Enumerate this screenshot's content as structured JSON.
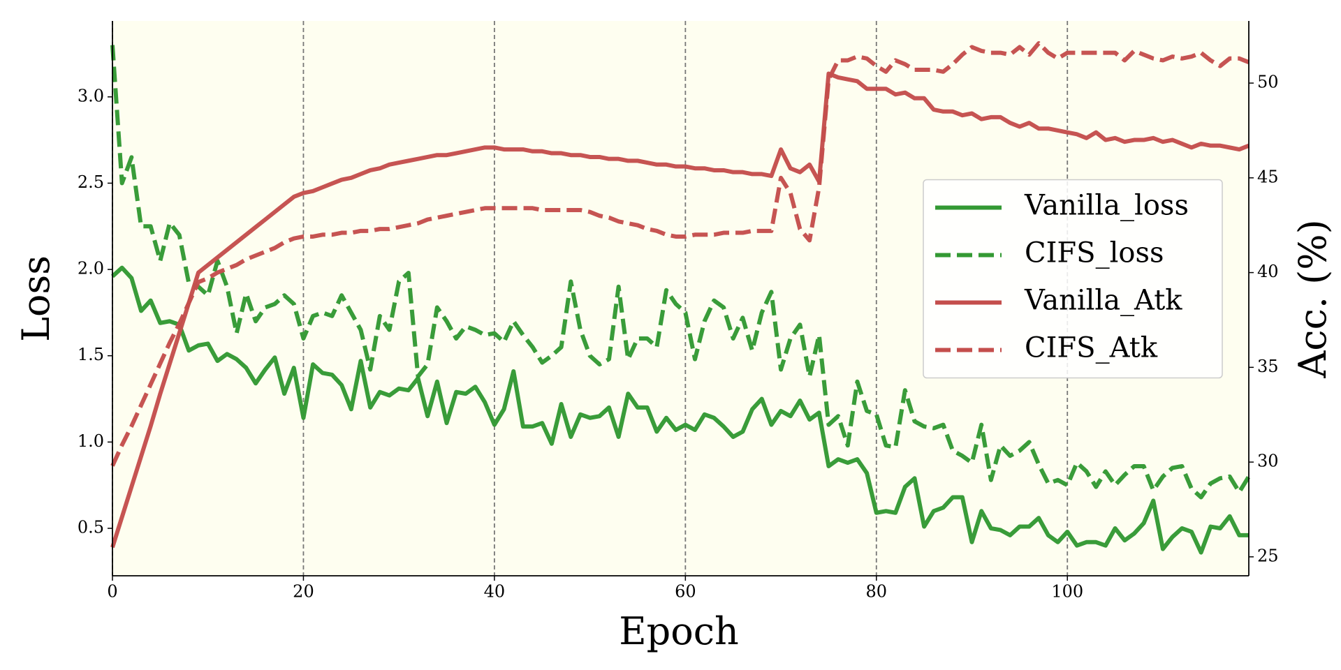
{
  "chart_data": {
    "type": "line",
    "xlabel": "Epoch",
    "ylabel": "Loss",
    "y2label": "Acc. (%)",
    "x": [
      0,
      1,
      2,
      3,
      4,
      5,
      6,
      7,
      8,
      9,
      10,
      11,
      12,
      13,
      14,
      15,
      16,
      17,
      18,
      19,
      20,
      21,
      22,
      23,
      24,
      25,
      26,
      27,
      28,
      29,
      30,
      31,
      32,
      33,
      34,
      35,
      36,
      37,
      38,
      39,
      40,
      41,
      42,
      43,
      44,
      45,
      46,
      47,
      48,
      49,
      50,
      51,
      52,
      53,
      54,
      55,
      56,
      57,
      58,
      59,
      60,
      61,
      62,
      63,
      64,
      65,
      66,
      67,
      68,
      69,
      70,
      71,
      72,
      73,
      74,
      75,
      76,
      77,
      78,
      79,
      80,
      81,
      82,
      83,
      84,
      85,
      86,
      87,
      88,
      89,
      90,
      91,
      92,
      93,
      94,
      95,
      96,
      97,
      98,
      99,
      100,
      101,
      102,
      103,
      104,
      105,
      106,
      107,
      108,
      109,
      110,
      111,
      112,
      113,
      114,
      115,
      116,
      117,
      118,
      119
    ],
    "series": [
      {
        "name": "Vanilla_loss",
        "color": "#339933",
        "linestyle": "solid",
        "axis": "y",
        "values": [
          1.96,
          2.01,
          1.95,
          1.76,
          1.82,
          1.69,
          1.7,
          1.68,
          1.53,
          1.56,
          1.57,
          1.47,
          1.51,
          1.48,
          1.43,
          1.34,
          1.42,
          1.49,
          1.28,
          1.43,
          1.14,
          1.45,
          1.4,
          1.39,
          1.33,
          1.19,
          1.47,
          1.2,
          1.29,
          1.27,
          1.31,
          1.3,
          1.37,
          1.15,
          1.35,
          1.11,
          1.29,
          1.28,
          1.32,
          1.23,
          1.1,
          1.19,
          1.41,
          1.09,
          1.09,
          1.11,
          0.99,
          1.22,
          1.03,
          1.16,
          1.14,
          1.15,
          1.2,
          1.03,
          1.28,
          1.2,
          1.2,
          1.06,
          1.14,
          1.07,
          1.1,
          1.07,
          1.16,
          1.14,
          1.09,
          1.03,
          1.06,
          1.19,
          1.25,
          1.1,
          1.18,
          1.15,
          1.24,
          1.13,
          1.17,
          0.86,
          0.9,
          0.88,
          0.9,
          0.82,
          0.59,
          0.6,
          0.59,
          0.74,
          0.79,
          0.51,
          0.6,
          0.62,
          0.68,
          0.68,
          0.42,
          0.6,
          0.5,
          0.49,
          0.46,
          0.51,
          0.51,
          0.56,
          0.46,
          0.42,
          0.48,
          0.4,
          0.42,
          0.42,
          0.4,
          0.5,
          0.43,
          0.47,
          0.53,
          0.66,
          0.38,
          0.45,
          0.5,
          0.48,
          0.36,
          0.51,
          0.5,
          0.57,
          0.46,
          0.46
        ]
      },
      {
        "name": "CIFS_loss",
        "color": "#339933",
        "linestyle": "dashed",
        "axis": "y",
        "values": [
          3.3,
          2.5,
          2.65,
          2.25,
          2.25,
          2.05,
          2.27,
          2.2,
          1.92,
          1.9,
          1.85,
          2.05,
          1.9,
          1.63,
          1.86,
          1.7,
          1.78,
          1.8,
          1.85,
          1.8,
          1.6,
          1.73,
          1.75,
          1.73,
          1.85,
          1.75,
          1.65,
          1.42,
          1.73,
          1.65,
          1.93,
          1.98,
          1.38,
          1.45,
          1.78,
          1.7,
          1.6,
          1.67,
          1.65,
          1.62,
          1.63,
          1.58,
          1.7,
          1.62,
          1.55,
          1.46,
          1.5,
          1.55,
          1.93,
          1.65,
          1.5,
          1.45,
          1.48,
          1.9,
          1.48,
          1.6,
          1.6,
          1.55,
          1.88,
          1.8,
          1.75,
          1.48,
          1.7,
          1.82,
          1.78,
          1.6,
          1.72,
          1.53,
          1.75,
          1.87,
          1.42,
          1.6,
          1.68,
          1.38,
          1.62,
          1.1,
          1.15,
          0.98,
          1.35,
          1.18,
          1.16,
          0.98,
          0.97,
          1.3,
          1.12,
          1.09,
          1.08,
          1.1,
          0.95,
          0.92,
          0.88,
          1.1,
          0.78,
          0.98,
          0.92,
          0.95,
          1.0,
          0.87,
          0.76,
          0.78,
          0.75,
          0.88,
          0.83,
          0.74,
          0.83,
          0.75,
          0.81,
          0.86,
          0.86,
          0.72,
          0.8,
          0.85,
          0.86,
          0.73,
          0.68,
          0.76,
          0.79,
          0.8,
          0.71,
          0.8
        ]
      },
      {
        "name": "Vanilla_Atk",
        "color": "#c44e4c",
        "linestyle": "solid",
        "axis": "y2",
        "values": [
          25.5,
          27.1,
          28.7,
          30.3,
          31.9,
          33.6,
          35.2,
          36.8,
          38.4,
          40.0,
          40.4,
          40.8,
          41.2,
          41.6,
          42.0,
          42.4,
          42.8,
          43.2,
          43.6,
          44.0,
          44.2,
          44.3,
          44.5,
          44.7,
          44.9,
          45.0,
          45.2,
          45.4,
          45.5,
          45.7,
          45.8,
          45.9,
          46.0,
          46.1,
          46.2,
          46.2,
          46.3,
          46.4,
          46.5,
          46.6,
          46.6,
          46.5,
          46.5,
          46.5,
          46.4,
          46.4,
          46.3,
          46.3,
          46.2,
          46.2,
          46.1,
          46.1,
          46.0,
          46.0,
          45.9,
          45.9,
          45.8,
          45.7,
          45.7,
          45.6,
          45.6,
          45.5,
          45.5,
          45.4,
          45.4,
          45.3,
          45.3,
          45.2,
          45.2,
          45.1,
          46.5,
          45.5,
          45.3,
          45.7,
          44.8,
          50.5,
          50.3,
          50.2,
          50.1,
          49.7,
          49.7,
          49.7,
          49.4,
          49.5,
          49.2,
          49.2,
          48.6,
          48.5,
          48.5,
          48.3,
          48.4,
          48.1,
          48.2,
          48.2,
          47.9,
          47.7,
          47.9,
          47.6,
          47.6,
          47.5,
          47.4,
          47.3,
          47.1,
          47.4,
          47.0,
          47.1,
          46.9,
          47.0,
          47.0,
          47.1,
          46.9,
          47.0,
          46.8,
          46.6,
          46.8,
          46.7,
          46.7,
          46.6,
          46.5,
          46.7
        ]
      },
      {
        "name": "CIFS_Atk",
        "color": "#c44e4c",
        "linestyle": "dashed",
        "axis": "y2",
        "values": [
          29.8,
          30.9,
          31.9,
          33.0,
          34.1,
          35.2,
          36.3,
          37.3,
          38.4,
          39.5,
          39.7,
          40.0,
          40.2,
          40.4,
          40.7,
          40.9,
          41.1,
          41.3,
          41.6,
          41.8,
          41.9,
          41.9,
          42.0,
          42.0,
          42.1,
          42.1,
          42.2,
          42.2,
          42.3,
          42.3,
          42.4,
          42.5,
          42.6,
          42.8,
          42.9,
          43.0,
          43.1,
          43.2,
          43.3,
          43.4,
          43.4,
          43.4,
          43.4,
          43.4,
          43.4,
          43.3,
          43.3,
          43.3,
          43.3,
          43.3,
          43.2,
          43.0,
          42.9,
          42.7,
          42.6,
          42.5,
          42.3,
          42.2,
          42.0,
          41.9,
          41.9,
          42.0,
          42.0,
          42.0,
          42.1,
          42.1,
          42.1,
          42.2,
          42.2,
          42.2,
          45.0,
          44.2,
          42.3,
          41.7,
          44.5,
          50.2,
          51.2,
          51.2,
          51.4,
          51.3,
          50.9,
          50.6,
          51.2,
          51.0,
          50.7,
          50.7,
          50.7,
          50.6,
          51.0,
          51.5,
          51.9,
          51.7,
          51.6,
          51.6,
          51.5,
          51.9,
          51.5,
          52.1,
          51.6,
          51.3,
          51.6,
          51.6,
          51.6,
          51.6,
          51.6,
          51.6,
          51.2,
          51.7,
          51.5,
          51.3,
          51.2,
          51.4,
          51.3,
          51.4,
          51.6,
          51.2,
          50.9,
          51.3,
          51.3,
          51.1
        ]
      }
    ],
    "xlim": [
      0,
      119
    ],
    "xticks": [
      0,
      20,
      40,
      60,
      80,
      100
    ],
    "ylim": [
      0.225,
      3.44
    ],
    "yticks": [
      0.5,
      {
        "value": 1.0,
        "label": "1.0"
      },
      1.5,
      {
        "value": 2.0,
        "label": "2.0"
      },
      2.5,
      {
        "value": 3.0,
        "label": "3.0"
      }
    ],
    "y2lim": [
      24.0,
      53.28
    ],
    "y2ticks": [
      25,
      30,
      35,
      40,
      45,
      50
    ],
    "grid": "x",
    "legend": "center right",
    "background": "#fefef0"
  }
}
